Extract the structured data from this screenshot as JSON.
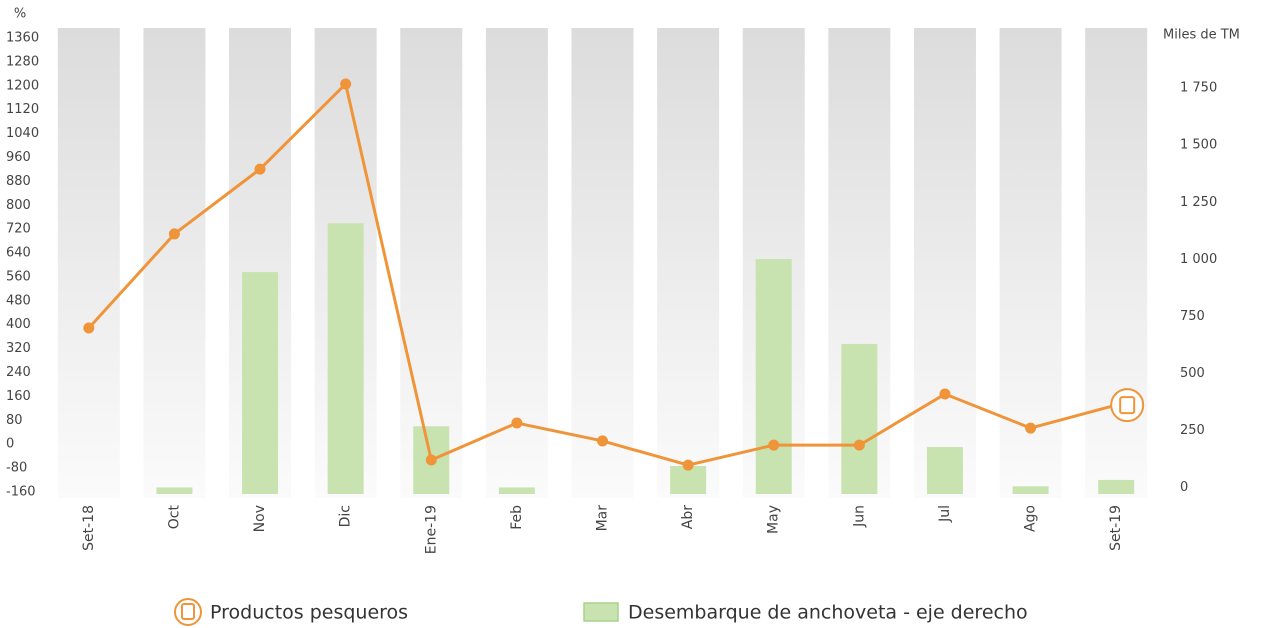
{
  "chart_data": {
    "type": "bar-line",
    "ylabel": "%",
    "y2label": "Miles de TM",
    "categories": [
      "Set-18",
      "Oct",
      "Nov",
      "Dic",
      "Ene-19",
      "Feb",
      "Mar",
      "Abr",
      "May",
      "Jun",
      "Jul",
      "Ago",
      "Set-19"
    ],
    "series": [
      {
        "name": "Productos pesqueros",
        "color": "#f0943a",
        "type": "line",
        "values": [
          389,
          704,
          921,
          1206,
          -53,
          71,
          11,
          -70,
          -3,
          -3,
          168,
          54,
          131
        ]
      },
      {
        "name": "Desembarque de anchoveta - eje derecho",
        "color": "#c8e3b0",
        "type": "bar",
        "axis": "y2",
        "values": [
          null,
          0,
          944,
          1158,
          268,
          0,
          null,
          94,
          1001,
          629,
          177,
          5,
          33
        ]
      }
    ],
    "ylim": [
      -160,
      1360
    ],
    "yticks": [
      -160,
      -80,
      0,
      80,
      160,
      240,
      320,
      400,
      480,
      560,
      640,
      720,
      800,
      880,
      960,
      1040,
      1120,
      1200,
      1280,
      1360
    ],
    "y2lim": [
      -20,
      1970
    ],
    "y2ticks": [
      0,
      250,
      500,
      750,
      {
        "value": 1000,
        "label": "1 000"
      },
      {
        "value": 1250,
        "label": "1 250"
      },
      {
        "value": 1500,
        "label": "1 500"
      },
      {
        "value": 1750,
        "label": "1 750"
      }
    ]
  }
}
